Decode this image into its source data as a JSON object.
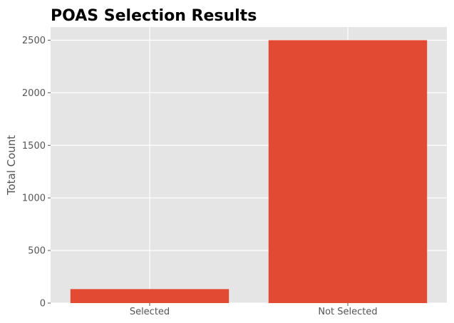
{
  "chart_data": {
    "type": "bar",
    "title": "POAS Selection Results",
    "xlabel": "",
    "ylabel": "Total Count",
    "categories": [
      "Selected",
      "Not Selected"
    ],
    "values": [
      133,
      2500
    ],
    "ylim": [
      0,
      2625
    ],
    "yticks": [
      0,
      500,
      1000,
      1500,
      2000,
      2500
    ],
    "grid": true,
    "bar_color": "#E24A33",
    "background_color": "#E5E5E5"
  }
}
